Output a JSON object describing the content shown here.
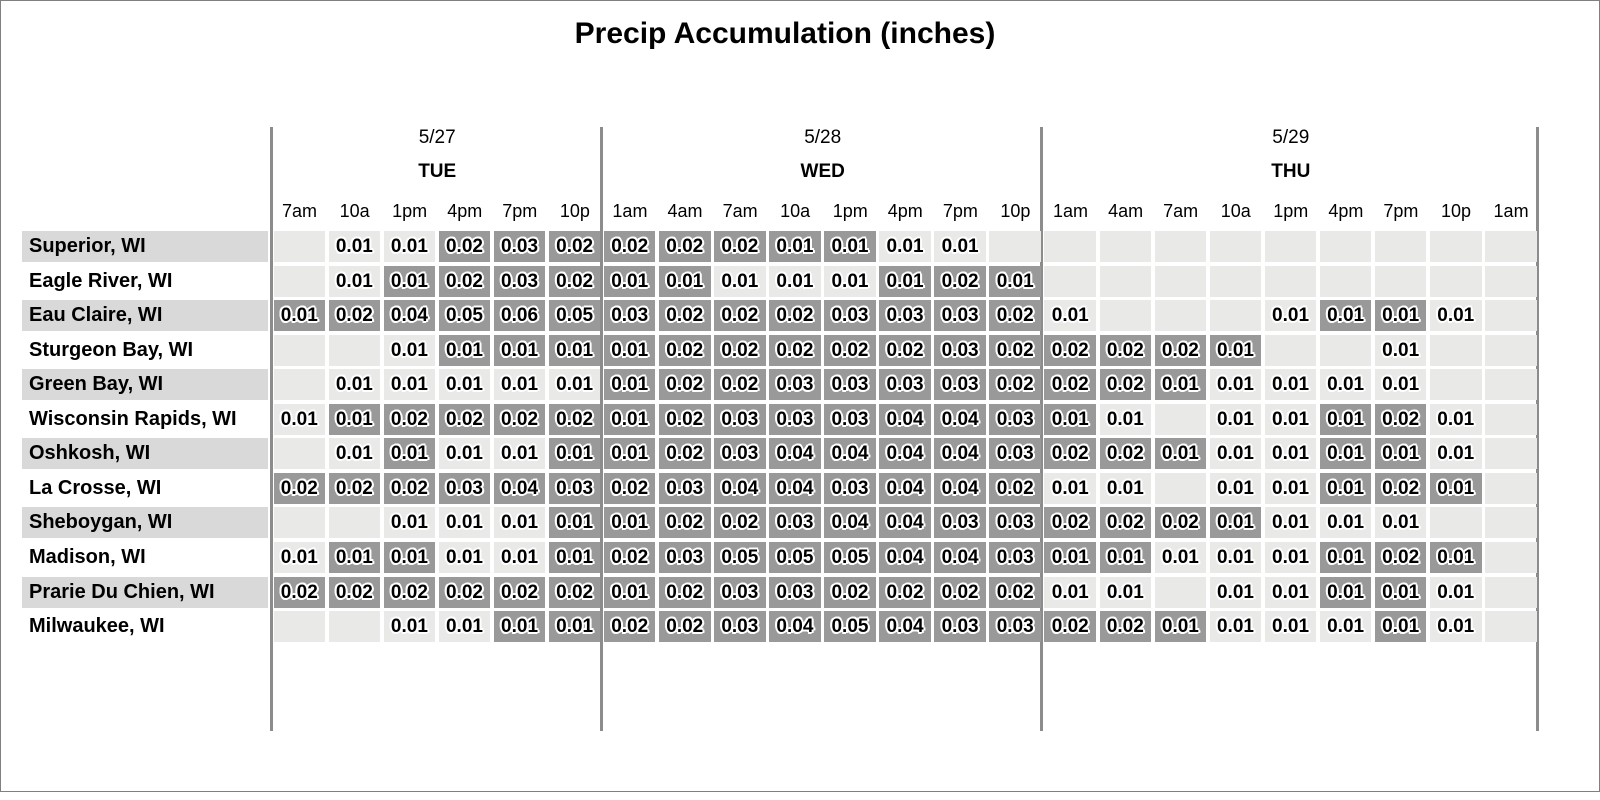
{
  "title": "Precip Accumulation (inches)",
  "colors": {
    "cell_light": "#e9e9e8",
    "cell_heavy": "#999999",
    "row_band": "#d9d9d9",
    "divider": "#8c8c8c",
    "frame": "#808080",
    "text": "#000000"
  },
  "chart_data": {
    "type": "heatmap",
    "title": "Precip Accumulation (inches)",
    "unit": "inches",
    "legend_note": "cell encoding: empty string = no precip (light gray cell); value = light-gray cell with value; value* = darker gray (heavier) cell with value",
    "day_groups": [
      {
        "date": "5/27",
        "weekday": "TUE",
        "times": [
          "7am",
          "10a",
          "1pm",
          "4pm",
          "7pm",
          "10p"
        ]
      },
      {
        "date": "5/28",
        "weekday": "WED",
        "times": [
          "1am",
          "4am",
          "7am",
          "10a",
          "1pm",
          "4pm",
          "7pm",
          "10p"
        ]
      },
      {
        "date": "5/29",
        "weekday": "THU",
        "times": [
          "1am",
          "4am",
          "7am",
          "10a",
          "1pm",
          "4pm",
          "7pm",
          "10p",
          "1am"
        ]
      }
    ],
    "columns": [
      "7am",
      "10a",
      "1pm",
      "4pm",
      "7pm",
      "10p",
      "1am",
      "4am",
      "7am",
      "10a",
      "1pm",
      "4pm",
      "7pm",
      "10p",
      "1am",
      "4am",
      "7am",
      "10a",
      "1pm",
      "4pm",
      "7pm",
      "10p",
      "1am"
    ],
    "rows": [
      {
        "city": "Superior, WI",
        "cells": [
          "",
          "0.01",
          "0.01",
          "0.02*",
          "0.03*",
          "0.02*",
          "0.02*",
          "0.02*",
          "0.02*",
          "0.01*",
          "0.01*",
          "0.01",
          "0.01",
          "",
          "",
          "",
          "",
          "",
          "",
          "",
          "",
          "",
          ""
        ]
      },
      {
        "city": "Eagle River, WI",
        "cells": [
          "",
          "0.01",
          "0.01*",
          "0.02*",
          "0.03*",
          "0.02*",
          "0.01*",
          "0.01*",
          "0.01",
          "0.01",
          "0.01",
          "0.01*",
          "0.02*",
          "0.01*",
          "",
          "",
          "",
          "",
          "",
          "",
          "",
          "",
          ""
        ]
      },
      {
        "city": "Eau Claire, WI",
        "cells": [
          "0.01*",
          "0.02*",
          "0.04*",
          "0.05*",
          "0.06*",
          "0.05*",
          "0.03*",
          "0.02*",
          "0.02*",
          "0.02*",
          "0.03*",
          "0.03*",
          "0.03*",
          "0.02*",
          "0.01",
          "",
          "",
          "",
          "0.01",
          "0.01*",
          "0.01*",
          "0.01",
          ""
        ]
      },
      {
        "city": "Sturgeon Bay, WI",
        "cells": [
          "",
          "",
          "0.01",
          "0.01*",
          "0.01*",
          "0.01*",
          "0.01*",
          "0.02*",
          "0.02*",
          "0.02*",
          "0.02*",
          "0.02*",
          "0.03*",
          "0.02*",
          "0.02*",
          "0.02*",
          "0.02*",
          "0.01*",
          "",
          "",
          "0.01",
          "",
          ""
        ]
      },
      {
        "city": "Green Bay, WI",
        "cells": [
          "",
          "0.01",
          "0.01",
          "0.01",
          "0.01",
          "0.01",
          "0.01*",
          "0.02*",
          "0.02*",
          "0.03*",
          "0.03*",
          "0.03*",
          "0.03*",
          "0.02*",
          "0.02*",
          "0.02*",
          "0.01*",
          "0.01",
          "0.01",
          "0.01",
          "0.01",
          "",
          ""
        ]
      },
      {
        "city": "Wisconsin Rapids, WI",
        "cells": [
          "0.01",
          "0.01*",
          "0.02*",
          "0.02*",
          "0.02*",
          "0.02*",
          "0.01*",
          "0.02*",
          "0.03*",
          "0.03*",
          "0.03*",
          "0.04*",
          "0.04*",
          "0.03*",
          "0.01*",
          "0.01",
          "",
          "0.01",
          "0.01",
          "0.01*",
          "0.02*",
          "0.01",
          ""
        ]
      },
      {
        "city": "Oshkosh, WI",
        "cells": [
          "",
          "0.01",
          "0.01*",
          "0.01",
          "0.01",
          "0.01*",
          "0.01*",
          "0.02*",
          "0.03*",
          "0.04*",
          "0.04*",
          "0.04*",
          "0.04*",
          "0.03*",
          "0.02*",
          "0.02*",
          "0.01*",
          "0.01",
          "0.01",
          "0.01*",
          "0.01*",
          "0.01",
          ""
        ]
      },
      {
        "city": "La Crosse, WI",
        "cells": [
          "0.02*",
          "0.02*",
          "0.02*",
          "0.03*",
          "0.04*",
          "0.03*",
          "0.02*",
          "0.03*",
          "0.04*",
          "0.04*",
          "0.03*",
          "0.04*",
          "0.04*",
          "0.02*",
          "0.01",
          "0.01",
          "",
          "0.01",
          "0.01",
          "0.01*",
          "0.02*",
          "0.01*",
          ""
        ]
      },
      {
        "city": "Sheboygan, WI",
        "cells": [
          "",
          "",
          "0.01",
          "0.01",
          "0.01",
          "0.01*",
          "0.01*",
          "0.02*",
          "0.02*",
          "0.03*",
          "0.04*",
          "0.04*",
          "0.03*",
          "0.03*",
          "0.02*",
          "0.02*",
          "0.02*",
          "0.01*",
          "0.01",
          "0.01",
          "0.01",
          "",
          ""
        ]
      },
      {
        "city": "Madison, WI",
        "cells": [
          "0.01",
          "0.01*",
          "0.01*",
          "0.01",
          "0.01",
          "0.01*",
          "0.02*",
          "0.03*",
          "0.05*",
          "0.05*",
          "0.05*",
          "0.04*",
          "0.04*",
          "0.03*",
          "0.01*",
          "0.01*",
          "0.01",
          "0.01",
          "0.01",
          "0.01*",
          "0.02*",
          "0.01*",
          ""
        ]
      },
      {
        "city": "Prarie Du Chien, WI",
        "cells": [
          "0.02*",
          "0.02*",
          "0.02*",
          "0.02*",
          "0.02*",
          "0.02*",
          "0.01*",
          "0.02*",
          "0.03*",
          "0.03*",
          "0.02*",
          "0.02*",
          "0.02*",
          "0.02*",
          "0.01",
          "0.01",
          "",
          "0.01",
          "0.01",
          "0.01*",
          "0.01*",
          "0.01",
          ""
        ]
      },
      {
        "city": "Milwaukee, WI",
        "cells": [
          "",
          "",
          "0.01",
          "0.01",
          "0.01*",
          "0.01*",
          "0.02*",
          "0.02*",
          "0.03*",
          "0.04*",
          "0.05*",
          "0.04*",
          "0.03*",
          "0.03*",
          "0.02*",
          "0.02*",
          "0.01*",
          "0.01",
          "0.01",
          "0.01",
          "0.01*",
          "0.01",
          ""
        ]
      }
    ]
  }
}
